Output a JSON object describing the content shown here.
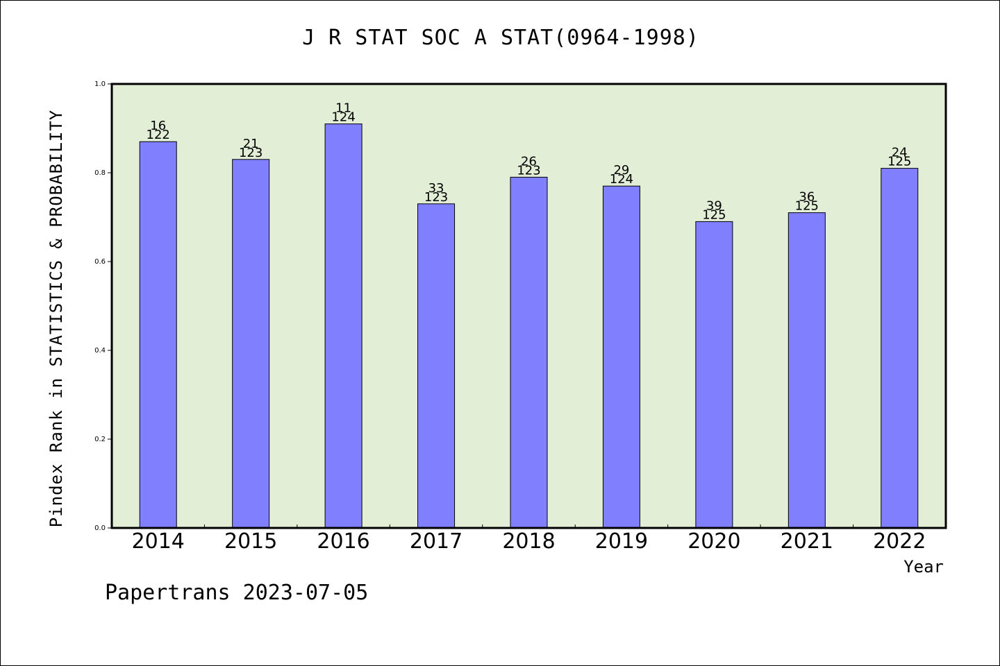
{
  "page": {
    "title": "J R STAT SOC A STAT(0964-1998)",
    "ylabel": "Pindex Rank in STATISTICS & PROBABILITY",
    "xlabel": "Year",
    "footer": "Papertrans 2023-07-05"
  },
  "chart_data": {
    "type": "bar",
    "title": "J R STAT SOC A STAT(0964-1998)",
    "xlabel": "Year",
    "ylabel": "Pindex Rank in STATISTICS & PROBABILITY",
    "categories": [
      "2014",
      "2015",
      "2016",
      "2017",
      "2018",
      "2019",
      "2020",
      "2021",
      "2022"
    ],
    "values": [
      0.87,
      0.83,
      0.91,
      0.73,
      0.79,
      0.77,
      0.69,
      0.71,
      0.81
    ],
    "rank": [
      "16",
      "21",
      "11",
      "33",
      "26",
      "29",
      "39",
      "36",
      "24"
    ],
    "total": [
      "122",
      "123",
      "124",
      "123",
      "123",
      "124",
      "125",
      "125",
      "125"
    ],
    "ylim": [
      0,
      1.0
    ],
    "yticks": [
      "0.0",
      "0.2",
      "0.4",
      "0.6",
      "0.8",
      "1.0"
    ],
    "grid": false,
    "colors": {
      "bar": "#8080ff",
      "plot_background": "#e2efd6",
      "axis": "#000000"
    }
  }
}
